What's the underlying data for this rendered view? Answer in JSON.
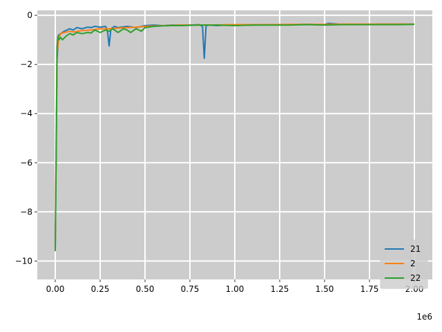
{
  "chart_data": {
    "type": "line",
    "title": "",
    "xlabel": "",
    "ylabel": "",
    "x_offset_label": "1e6",
    "xlim": [
      -0.1,
      2.1
    ],
    "ylim": [
      -10.75,
      0.2
    ],
    "xticks": [
      0.0,
      0.25,
      0.5,
      0.75,
      1.0,
      1.25,
      1.5,
      1.75,
      2.0
    ],
    "xtick_labels": [
      "0.00",
      "0.25",
      "0.50",
      "0.75",
      "1.00",
      "1.25",
      "1.50",
      "1.75",
      "2.00"
    ],
    "yticks": [
      0,
      -2,
      -4,
      -6,
      -8,
      -10
    ],
    "ytick_labels": [
      "0",
      "−2",
      "−4",
      "−6",
      "−8",
      "−10"
    ],
    "grid": true,
    "background": "#cccccc",
    "legend_position": "bottom-right",
    "series": [
      {
        "name": "21",
        "color": "#1f77b4",
        "x": [
          0.0,
          0.005,
          0.01,
          0.02,
          0.03,
          0.05,
          0.08,
          0.1,
          0.12,
          0.15,
          0.18,
          0.2,
          0.22,
          0.25,
          0.28,
          0.29,
          0.3,
          0.31,
          0.33,
          0.35,
          0.4,
          0.45,
          0.5,
          0.55,
          0.6,
          0.65,
          0.7,
          0.75,
          0.8,
          0.82,
          0.83,
          0.84,
          0.86,
          0.9,
          0.95,
          1.0,
          1.1,
          1.2,
          1.3,
          1.4,
          1.5,
          1.52,
          1.6,
          1.7,
          1.8,
          1.9,
          2.0
        ],
        "y": [
          -9.5,
          -5.5,
          -1.8,
          -0.8,
          -0.75,
          -0.65,
          -0.55,
          -0.6,
          -0.5,
          -0.55,
          -0.48,
          -0.5,
          -0.45,
          -0.48,
          -0.45,
          -0.6,
          -1.25,
          -0.55,
          -0.45,
          -0.5,
          -0.45,
          -0.5,
          -0.42,
          -0.4,
          -0.42,
          -0.4,
          -0.4,
          -0.4,
          -0.38,
          -0.45,
          -1.75,
          -0.42,
          -0.4,
          -0.42,
          -0.4,
          -0.4,
          -0.4,
          -0.38,
          -0.38,
          -0.37,
          -0.38,
          -0.33,
          -0.37,
          -0.37,
          -0.36,
          -0.36,
          -0.36
        ]
      },
      {
        "name": "2",
        "color": "#ff7f0e",
        "x": [
          0.0,
          0.005,
          0.01,
          0.02,
          0.03,
          0.05,
          0.08,
          0.1,
          0.15,
          0.2,
          0.25,
          0.3,
          0.35,
          0.4,
          0.45,
          0.5,
          0.6,
          0.7,
          0.8,
          0.9,
          1.0,
          1.1,
          1.2,
          1.3,
          1.4,
          1.5,
          1.6,
          1.7,
          1.8,
          1.9,
          2.0
        ],
        "y": [
          -9.3,
          -4.8,
          -1.6,
          -0.9,
          -0.75,
          -0.7,
          -0.65,
          -0.68,
          -0.62,
          -0.6,
          -0.55,
          -0.55,
          -0.52,
          -0.5,
          -0.48,
          -0.45,
          -0.42,
          -0.4,
          -0.4,
          -0.39,
          -0.38,
          -0.38,
          -0.38,
          -0.37,
          -0.37,
          -0.37,
          -0.36,
          -0.36,
          -0.36,
          -0.36,
          -0.36
        ]
      },
      {
        "name": "22",
        "color": "#2ca02c",
        "x": [
          0.0,
          0.005,
          0.01,
          0.015,
          0.02,
          0.03,
          0.04,
          0.06,
          0.08,
          0.1,
          0.12,
          0.15,
          0.18,
          0.2,
          0.22,
          0.25,
          0.28,
          0.3,
          0.32,
          0.35,
          0.38,
          0.4,
          0.42,
          0.45,
          0.48,
          0.5,
          0.55,
          0.6,
          0.65,
          0.7,
          0.8,
          0.9,
          1.0,
          1.1,
          1.2,
          1.3,
          1.4,
          1.5,
          1.6,
          1.7,
          1.8,
          1.9,
          2.0
        ],
        "y": [
          -9.6,
          -6.0,
          -1.3,
          -0.85,
          -1.0,
          -0.9,
          -1.0,
          -0.85,
          -0.75,
          -0.8,
          -0.7,
          -0.75,
          -0.7,
          -0.72,
          -0.6,
          -0.7,
          -0.6,
          -0.65,
          -0.55,
          -0.7,
          -0.55,
          -0.6,
          -0.7,
          -0.55,
          -0.65,
          -0.5,
          -0.45,
          -0.43,
          -0.42,
          -0.42,
          -0.4,
          -0.4,
          -0.42,
          -0.4,
          -0.4,
          -0.4,
          -0.38,
          -0.4,
          -0.38,
          -0.38,
          -0.38,
          -0.38,
          -0.37
        ]
      }
    ]
  }
}
